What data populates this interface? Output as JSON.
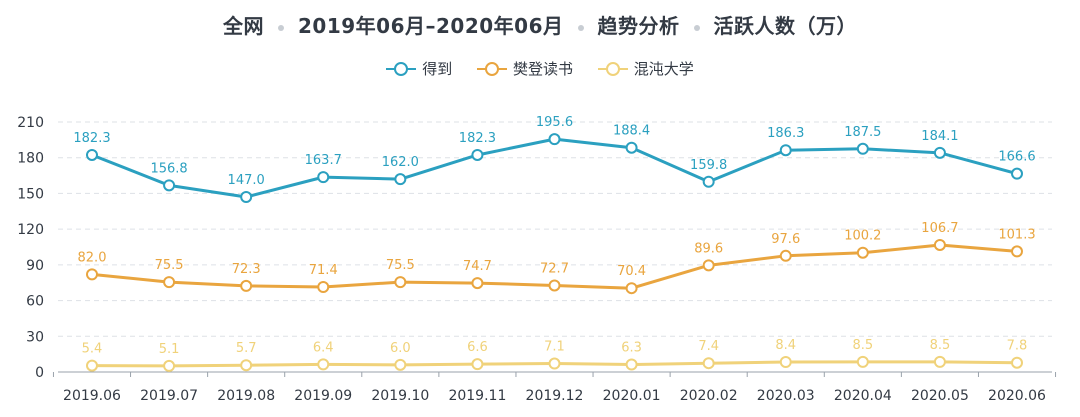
{
  "header": {
    "parts": [
      "全网",
      "2019年06月–2020年06月",
      "趋势分析",
      "活跃人数（万）"
    ]
  },
  "chart_data": {
    "type": "line",
    "title": "全网 · 2019年06月–2020年06月 · 趋势分析 · 活跃人数（万）",
    "xlabel": "",
    "ylabel": "活跃人数（万）",
    "ylim": [
      0,
      210
    ],
    "yticks": [
      0,
      30,
      60,
      90,
      120,
      150,
      180,
      210
    ],
    "legend_position": "top-center",
    "grid": "y-dashed",
    "categories": [
      "2019.06",
      "2019.07",
      "2019.08",
      "2019.09",
      "2019.10",
      "2019.11",
      "2019.12",
      "2020.01",
      "2020.02",
      "2020.03",
      "2020.04",
      "2020.05",
      "2020.06"
    ],
    "series": [
      {
        "name": "得到",
        "color": "#2ba0c0",
        "values": [
          182.3,
          156.8,
          147.0,
          163.7,
          162.0,
          182.3,
          195.6,
          188.4,
          159.8,
          186.3,
          187.5,
          184.1,
          166.6
        ]
      },
      {
        "name": "樊登读书",
        "color": "#e9a53f",
        "values": [
          82.0,
          75.5,
          72.3,
          71.4,
          75.5,
          74.7,
          72.7,
          70.4,
          89.6,
          97.6,
          100.2,
          106.7,
          101.3
        ]
      },
      {
        "name": "混沌大学",
        "color": "#f0d27a",
        "values": [
          5.4,
          5.1,
          5.7,
          6.4,
          6.0,
          6.6,
          7.1,
          6.3,
          7.4,
          8.4,
          8.5,
          8.5,
          7.8
        ]
      }
    ]
  }
}
